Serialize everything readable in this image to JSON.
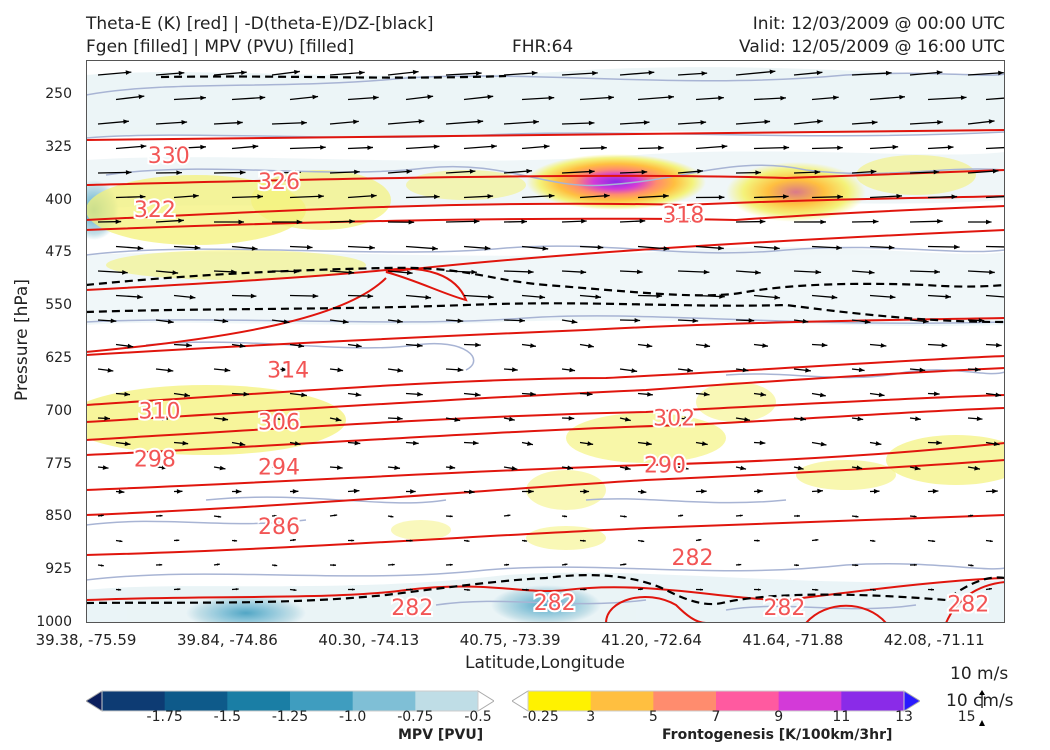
{
  "header": {
    "title_left_1": "Theta-E (K) [red] | -D(theta-E)/DZ-[black]",
    "title_left_2": "Fgen [filled] | MPV (PVU) [filled]",
    "fhr": "FHR:64",
    "init": "Init: 12/03/2009 @ 00:00 UTC",
    "valid": "Valid: 12/05/2009 @ 16:00 UTC"
  },
  "chart_data": {
    "type": "cross-section contour",
    "xlabel": "Latitude,Longitude",
    "ylabel": "Pressure [hPa]",
    "y_ticks": [
      "250",
      "325",
      "400",
      "475",
      "550",
      "625",
      "700",
      "775",
      "850",
      "925",
      "1000"
    ],
    "x_ticks": [
      "39.38, -75.59",
      "39.84, -74.86",
      "40.30, -74.13",
      "40.75, -73.39",
      "41.20, -72.64",
      "41.64, -71.88",
      "42.08, -71.11"
    ],
    "ylim": [
      1000,
      200
    ],
    "theta_e_labels": [
      {
        "label": "330",
        "x": 0.09,
        "p": 335
      },
      {
        "label": "326",
        "x": 0.21,
        "p": 372
      },
      {
        "label": "322",
        "x": 0.075,
        "p": 412
      },
      {
        "label": "318",
        "x": 0.65,
        "p": 420
      },
      {
        "label": "314",
        "x": 0.22,
        "p": 640
      },
      {
        "label": "310",
        "x": 0.08,
        "p": 698
      },
      {
        "label": "306",
        "x": 0.21,
        "p": 714
      },
      {
        "label": "302",
        "x": 0.64,
        "p": 708
      },
      {
        "label": "298",
        "x": 0.075,
        "p": 766
      },
      {
        "label": "294",
        "x": 0.21,
        "p": 778
      },
      {
        "label": "290",
        "x": 0.63,
        "p": 775
      },
      {
        "label": "286",
        "x": 0.21,
        "p": 862
      },
      {
        "label": "282",
        "x": 0.66,
        "p": 906
      },
      {
        "label": "282",
        "x": 0.355,
        "p": 977
      },
      {
        "label": "282",
        "x": 0.51,
        "p": 970
      },
      {
        "label": "282",
        "x": 0.76,
        "p": 977
      },
      {
        "label": "282",
        "x": 0.96,
        "p": 972
      }
    ],
    "mpv_colorbar": {
      "label": "MPV [PVU]",
      "ticks": [
        "-1.75",
        "-1.5",
        "-1.25",
        "-1.0",
        "-0.75",
        "-0.5",
        "-0.25"
      ],
      "colors": [
        "#0b1e5c",
        "#0d3b73",
        "#0e5a8a",
        "#1a7ea5",
        "#3f9dbf",
        "#7fbfd6",
        "#bfdde6",
        "#ffffff"
      ]
    },
    "fgen_colorbar": {
      "label": "Frontogenesis [K/100km/3hr]",
      "ticks": [
        "3",
        "5",
        "7",
        "9",
        "11",
        "13",
        "15"
      ],
      "colors": [
        "#ffffff",
        "#fff200",
        "#ffbf40",
        "#ff8c6e",
        "#ff5aa0",
        "#d33ad8",
        "#8a2be8",
        "#2a1aff"
      ]
    },
    "vector_key": {
      "wind": "10 m/s",
      "vertical": "10 cm/s"
    }
  }
}
